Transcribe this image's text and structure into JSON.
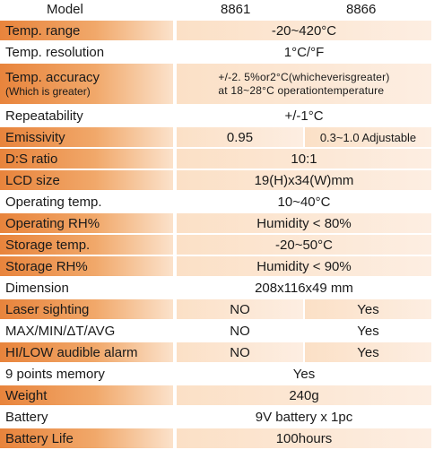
{
  "header": {
    "col_label": "Model",
    "model_1": "8861",
    "model_2": "8866"
  },
  "rows": [
    {
      "label": "Temp. range",
      "value": "-20~420°C"
    },
    {
      "label": "Temp. resolution",
      "value": "1°C/°F"
    },
    {
      "label": "Temp. accuracy",
      "label_sub": "(Which is greater)",
      "value_line1": "+/-2. 5%or2°C(whicheverisgreater)",
      "value_line2": "at 18~28°C operationtemperature"
    },
    {
      "label": "Repeatability",
      "value": "+/-1°C"
    },
    {
      "label": "Emissivity",
      "value_1": "0.95",
      "value_2": "0.3~1.0 Adjustable"
    },
    {
      "label": "D:S ratio",
      "value": "10:1"
    },
    {
      "label": "LCD size",
      "value": "19(H)x34(W)mm"
    },
    {
      "label": "Operating temp.",
      "value": "10~40°C"
    },
    {
      "label": "Operating RH%",
      "value": "Humidity < 80%"
    },
    {
      "label": "Storage temp.",
      "value": "-20~50°C"
    },
    {
      "label": "Storage RH%",
      "value": "Humidity < 90%"
    },
    {
      "label": "Dimension",
      "value": "208x116x49 mm"
    },
    {
      "label": "Laser sighting",
      "value_1": "NO",
      "value_2": "Yes"
    },
    {
      "label": "MAX/MIN/ΔT/AVG",
      "value_1": "NO",
      "value_2": "Yes"
    },
    {
      "label": "HI/LOW audible alarm",
      "value_1": "NO",
      "value_2": "Yes"
    },
    {
      "label": "9 points memory",
      "value": "Yes"
    },
    {
      "label": "Weight",
      "value": "240g"
    },
    {
      "label": "Battery",
      "value": "9V battery x 1pc"
    },
    {
      "label": "Battery Life",
      "value": "100hours"
    }
  ],
  "colors": {
    "accent_orange": "#e8843c",
    "pale_orange": "#fbe0c6"
  }
}
